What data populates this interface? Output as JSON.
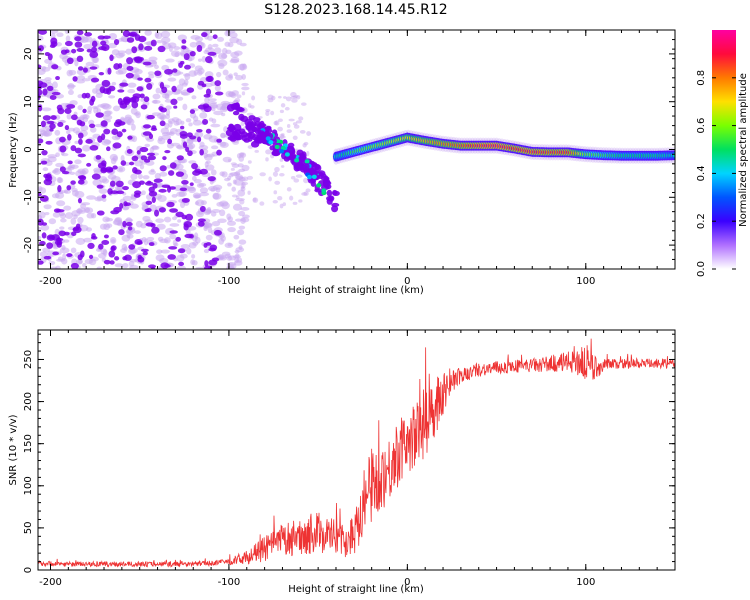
{
  "figure_title": "S128.2023.168.14.45.R12",
  "colors": {
    "snr_line": "#ee3333",
    "scatter_sparse": "#c9a8f0",
    "scatter_dense": "#7a00e8",
    "colormap": [
      "#ffffff",
      "#b070ff",
      "#3a00ff",
      "#0055ff",
      "#00d4ff",
      "#00e060",
      "#7aff00",
      "#ffe000",
      "#ff7a00",
      "#ff0a3c",
      "#ff00a0"
    ]
  },
  "chart_data": [
    {
      "type": "heatmap",
      "title": "",
      "xlabel": "Height of straight line (km)",
      "ylabel": "Frequency (Hz)",
      "xlim": [
        -207,
        150
      ],
      "ylim": [
        -25,
        25
      ],
      "xticks": [
        -200,
        -100,
        0,
        100
      ],
      "xtick_labels": [
        "-200",
        "-100",
        "0",
        "100"
      ],
      "yticks": [
        -20,
        -10,
        0,
        10,
        20
      ],
      "ytick_labels": [
        "-20",
        "-10",
        "0",
        "10",
        "20"
      ],
      "colorbar": {
        "label": "Normalized spectral amplitude",
        "range": [
          0,
          1
        ],
        "ticks": [
          0.0,
          0.2,
          0.4,
          0.6,
          0.8
        ],
        "tick_labels": [
          "0.0",
          "0.2",
          "0.4",
          "0.6",
          "0.8"
        ]
      },
      "spectral_ridge": {
        "x": [
          -40,
          -30,
          -20,
          -10,
          0,
          10,
          20,
          30,
          40,
          50,
          60,
          70,
          80,
          90,
          100,
          110,
          120,
          130,
          140,
          150
        ],
        "freq": [
          -1.5,
          -0.5,
          0.5,
          1.5,
          2.5,
          1.8,
          1.2,
          0.8,
          0.8,
          0.8,
          0.2,
          -0.5,
          -0.6,
          -0.6,
          -1.0,
          -1.2,
          -1.3,
          -1.3,
          -1.3,
          -1.2
        ],
        "amplitude": [
          0.45,
          0.55,
          0.6,
          0.65,
          0.7,
          0.75,
          0.8,
          0.85,
          0.92,
          0.95,
          0.9,
          0.92,
          0.88,
          0.9,
          0.6,
          0.55,
          0.5,
          0.5,
          0.5,
          0.45
        ]
      },
      "scatter_branches": [
        {
          "x": [
            -100,
            -90,
            -80,
            -70,
            -60,
            -50,
            -40
          ],
          "freq": [
            10,
            6,
            4,
            1,
            -2,
            -5,
            -10
          ]
        },
        {
          "x": [
            -100,
            -90,
            -80,
            -70,
            -60,
            -50,
            -40
          ],
          "freq": [
            4,
            3,
            2,
            0,
            -3,
            -7,
            -12
          ]
        }
      ],
      "noise_region_x": [
        -207,
        -100
      ]
    },
    {
      "type": "line",
      "title": "",
      "xlabel": "Height of straight line (km)",
      "ylabel": "SNR (10 * v/v)",
      "xlim": [
        -207,
        150
      ],
      "ylim": [
        0,
        285
      ],
      "xticks": [
        -200,
        -100,
        0,
        100
      ],
      "xtick_labels": [
        "-200",
        "-100",
        "0",
        "100"
      ],
      "yticks": [
        0,
        50,
        100,
        150,
        200,
        250
      ],
      "ytick_labels": [
        "0",
        "50",
        "100",
        "150",
        "200",
        "250"
      ],
      "series": [
        {
          "x": [
            -207,
            -190,
            -170,
            -150,
            -130,
            -110,
            -100,
            -90,
            -80,
            -70,
            -60,
            -50,
            -40,
            -35,
            -30,
            -25,
            -20,
            -15,
            -10,
            -5,
            0,
            5,
            10,
            15,
            20,
            25,
            30,
            40,
            50,
            60,
            70,
            80,
            90,
            95,
            100,
            105,
            110,
            120,
            130,
            140,
            150
          ],
          "y": [
            8,
            7,
            7,
            7,
            7,
            8,
            10,
            15,
            25,
            35,
            40,
            45,
            40,
            30,
            45,
            80,
            100,
            110,
            120,
            140,
            150,
            160,
            175,
            195,
            210,
            225,
            230,
            238,
            240,
            242,
            243,
            245,
            247,
            250,
            245,
            240,
            243,
            245,
            245,
            245,
            245
          ],
          "noise": [
            3,
            3,
            3,
            3,
            3,
            3,
            4,
            8,
            15,
            20,
            22,
            25,
            22,
            15,
            30,
            40,
            45,
            40,
            40,
            40,
            35,
            40,
            45,
            40,
            25,
            15,
            10,
            8,
            8,
            8,
            8,
            10,
            12,
            20,
            25,
            15,
            8,
            6,
            6,
            6,
            6
          ]
        }
      ]
    }
  ]
}
